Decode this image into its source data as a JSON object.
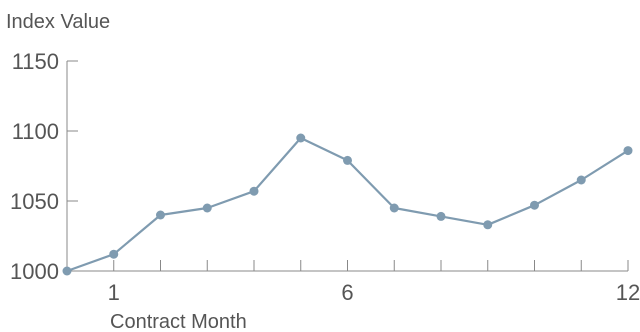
{
  "chart_data": {
    "type": "line",
    "title": "",
    "xlabel": "Contract Month",
    "ylabel": "Index Value",
    "x": [
      0,
      1,
      2,
      3,
      4,
      5,
      6,
      7,
      8,
      9,
      10,
      11,
      12
    ],
    "series": [
      {
        "values": [
          1000,
          1012,
          1040,
          1045,
          1057,
          1095,
          1079,
          1045,
          1039,
          1033,
          1047,
          1065,
          1086
        ]
      }
    ],
    "xlim": [
      0,
      12
    ],
    "ylim": [
      1000,
      1150
    ],
    "x_tick_labels": [
      "1",
      "6",
      "12"
    ],
    "x_tick_label_values": [
      1,
      6,
      12
    ],
    "x_minor_ticks": [
      0,
      1,
      2,
      3,
      4,
      5,
      6,
      7,
      8,
      9,
      10,
      11,
      12
    ],
    "y_ticks": [
      1000,
      1050,
      1100,
      1150
    ],
    "grid": false,
    "legend": "none",
    "colors": {
      "line": "#7f9bb0",
      "marker": "#7f9bb0",
      "axis": "#888888",
      "text": "#555555"
    }
  }
}
